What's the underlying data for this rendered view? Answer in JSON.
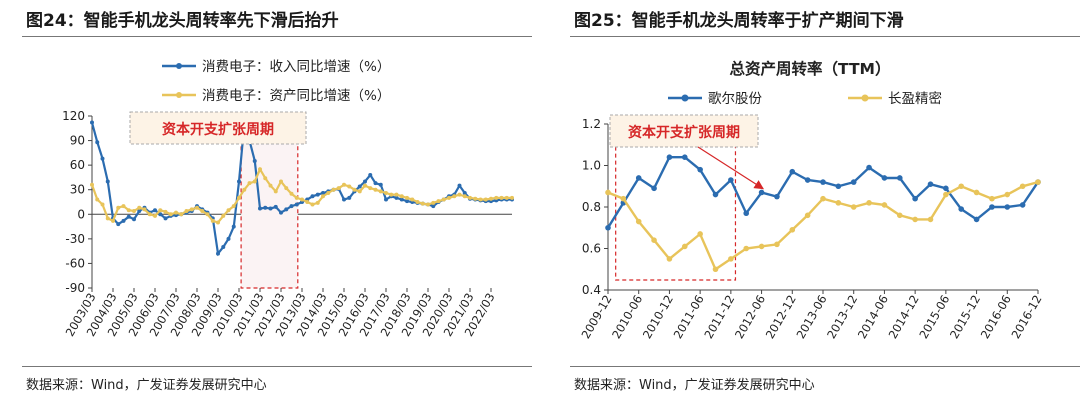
{
  "left_panel": {
    "title": "图24：智能手机龙头周转率先下滑后抬升",
    "source": "数据来源：Wind，广发证券发展研究中心",
    "annotation": "资本开支扩张周期"
  },
  "right_panel": {
    "title": "图25：智能手机龙头周转率于扩产期间下滑",
    "source": "数据来源：Wind，广发证券发展研究中心",
    "annotation": "资本开支扩张周期"
  },
  "colors": {
    "blue": "#2b6cb0",
    "yellow": "#e8c45a",
    "red": "#d62728",
    "box_fill": "#fdf6ec",
    "box_border": "#aaaaaa"
  },
  "chart_data": [
    {
      "type": "line",
      "title": "",
      "xlabel": "",
      "ylabel": "",
      "ylim": [
        -90,
        120
      ],
      "yticks": [
        -90,
        -60,
        -30,
        0,
        30,
        60,
        90,
        120
      ],
      "tick_labels": [
        "2003/03",
        "2004/03",
        "2005/03",
        "2006/03",
        "2007/03",
        "2008/03",
        "2009/03",
        "2010/03",
        "2011/03",
        "2012/03",
        "2013/03",
        "2014/03",
        "2015/03",
        "2016/03",
        "2017/03",
        "2018/03",
        "2019/03",
        "2020/03",
        "2021/03",
        "2022/03"
      ],
      "shaded_region": [
        7.1,
        9.8
      ],
      "x_range": [
        0,
        20
      ],
      "series": [
        {
          "name": "消费电子：收入同比增速（%）",
          "color": "#2b6cb0",
          "x": [
            0,
            0.25,
            0.5,
            0.75,
            1,
            1.25,
            1.5,
            1.75,
            2,
            2.25,
            2.5,
            2.75,
            3,
            3.25,
            3.5,
            3.75,
            4,
            4.25,
            4.5,
            4.75,
            5,
            5.25,
            5.5,
            5.75,
            6,
            6.25,
            6.5,
            6.75,
            7,
            7.25,
            7.5,
            7.75,
            8,
            8.25,
            8.5,
            8.75,
            9,
            9.25,
            9.5,
            9.75,
            10,
            10.25,
            10.5,
            10.75,
            11,
            11.25,
            11.5,
            11.75,
            12,
            12.25,
            12.5,
            12.75,
            13,
            13.25,
            13.5,
            13.75,
            14,
            14.25,
            14.5,
            14.75,
            15,
            15.25,
            15.5,
            15.75,
            16,
            16.25,
            16.5,
            16.75,
            17,
            17.25,
            17.5,
            17.75,
            18,
            18.25,
            18.5,
            18.75,
            19,
            19.25,
            19.5,
            19.75,
            20
          ],
          "values": [
            112,
            88,
            68,
            40,
            -5,
            -12,
            -8,
            -3,
            -6,
            4,
            8,
            2,
            5,
            0,
            -5,
            -2,
            -1,
            0,
            2,
            4,
            10,
            6,
            2,
            -5,
            -48,
            -40,
            -30,
            -15,
            40,
            110,
            90,
            65,
            7,
            8,
            7,
            9,
            2,
            6,
            10,
            12,
            15,
            18,
            22,
            24,
            26,
            28,
            30,
            31,
            18,
            20,
            28,
            34,
            40,
            48,
            38,
            36,
            18,
            22,
            20,
            18,
            16,
            15,
            14,
            13,
            12,
            10,
            15,
            18,
            22,
            24,
            35,
            26,
            19,
            18,
            17,
            16,
            16,
            17,
            18,
            18,
            18
          ]
        },
        {
          "name": "消费电子：资产同比增速（%）",
          "color": "#e8c45a",
          "x": [
            0,
            0.25,
            0.5,
            0.75,
            1,
            1.25,
            1.5,
            1.75,
            2,
            2.25,
            2.5,
            2.75,
            3,
            3.25,
            3.5,
            3.75,
            4,
            4.25,
            4.5,
            4.75,
            5,
            5.25,
            5.5,
            5.75,
            6,
            6.25,
            6.5,
            6.75,
            7,
            7.25,
            7.5,
            7.75,
            8,
            8.25,
            8.5,
            8.75,
            9,
            9.25,
            9.5,
            9.75,
            10,
            10.25,
            10.5,
            10.75,
            11,
            11.25,
            11.5,
            11.75,
            12,
            12.25,
            12.5,
            12.75,
            13,
            13.25,
            13.5,
            13.75,
            14,
            14.25,
            14.5,
            14.75,
            15,
            15.25,
            15.5,
            15.75,
            16,
            16.25,
            16.5,
            16.75,
            17,
            17.25,
            17.5,
            17.75,
            18,
            18.25,
            18.5,
            18.75,
            19,
            19.25,
            19.5,
            19.75,
            20
          ],
          "values": [
            36,
            18,
            12,
            -5,
            -8,
            8,
            10,
            5,
            4,
            8,
            6,
            0,
            -2,
            5,
            3,
            0,
            2,
            0,
            4,
            6,
            8,
            4,
            0,
            -8,
            -10,
            -2,
            5,
            10,
            20,
            30,
            38,
            40,
            55,
            44,
            35,
            28,
            40,
            32,
            25,
            20,
            18,
            15,
            12,
            14,
            22,
            26,
            30,
            32,
            36,
            34,
            30,
            28,
            35,
            32,
            30,
            28,
            26,
            24,
            24,
            22,
            20,
            18,
            15,
            13,
            12,
            14,
            16,
            18,
            20,
            22,
            24,
            22,
            20,
            19,
            18,
            18,
            19,
            20,
            20,
            20,
            20
          ]
        }
      ]
    },
    {
      "type": "line",
      "title": "总资产周转率（TTM）",
      "xlabel": "",
      "ylabel": "",
      "ylim": [
        0.4,
        1.2
      ],
      "yticks": [
        0.4,
        0.6,
        0.8,
        1.0,
        1.2
      ],
      "tick_labels": [
        "2009-12",
        "2010-06",
        "2010-12",
        "2011-06",
        "2011-12",
        "2012-06",
        "2012-12",
        "2013-06",
        "2013-12",
        "2014-06",
        "2014-12",
        "2015-06",
        "2015-12",
        "2016-06",
        "2016-12"
      ],
      "shaded_region": [
        0.25,
        4.15
      ],
      "x_range": [
        0,
        14
      ],
      "series": [
        {
          "name": "歌尔股份",
          "color": "#2b6cb0",
          "x": [
            0,
            0.5,
            1,
            1.5,
            2,
            2.5,
            3,
            3.5,
            4,
            4.5,
            5,
            5.5,
            6,
            6.5,
            7,
            7.5,
            8,
            8.5,
            9,
            9.5,
            10,
            10.5,
            11,
            11.5,
            12,
            12.5,
            13,
            13.5,
            14
          ],
          "values": [
            0.7,
            0.82,
            0.94,
            0.89,
            1.04,
            1.04,
            0.98,
            0.86,
            0.93,
            0.77,
            0.87,
            0.85,
            0.97,
            0.93,
            0.92,
            0.9,
            0.92,
            0.99,
            0.94,
            0.94,
            0.84,
            0.91,
            0.89,
            0.79,
            0.74,
            0.8,
            0.8,
            0.81,
            0.92
          ]
        },
        {
          "name": "长盈精密",
          "color": "#e8c45a",
          "x": [
            0,
            0.5,
            1,
            1.5,
            2,
            2.5,
            3,
            3.5,
            4,
            4.5,
            5,
            5.5,
            6,
            6.5,
            7,
            7.5,
            8,
            8.5,
            9,
            9.5,
            10,
            10.5,
            11,
            11.5,
            12,
            12.5,
            13,
            13.5,
            14
          ],
          "values": [
            0.87,
            0.84,
            0.73,
            0.64,
            0.55,
            0.61,
            0.67,
            0.5,
            0.55,
            0.6,
            0.61,
            0.62,
            0.69,
            0.76,
            0.84,
            0.82,
            0.8,
            0.82,
            0.81,
            0.76,
            0.74,
            0.74,
            0.86,
            0.9,
            0.87,
            0.84,
            0.86,
            0.9,
            0.92
          ]
        }
      ]
    }
  ]
}
